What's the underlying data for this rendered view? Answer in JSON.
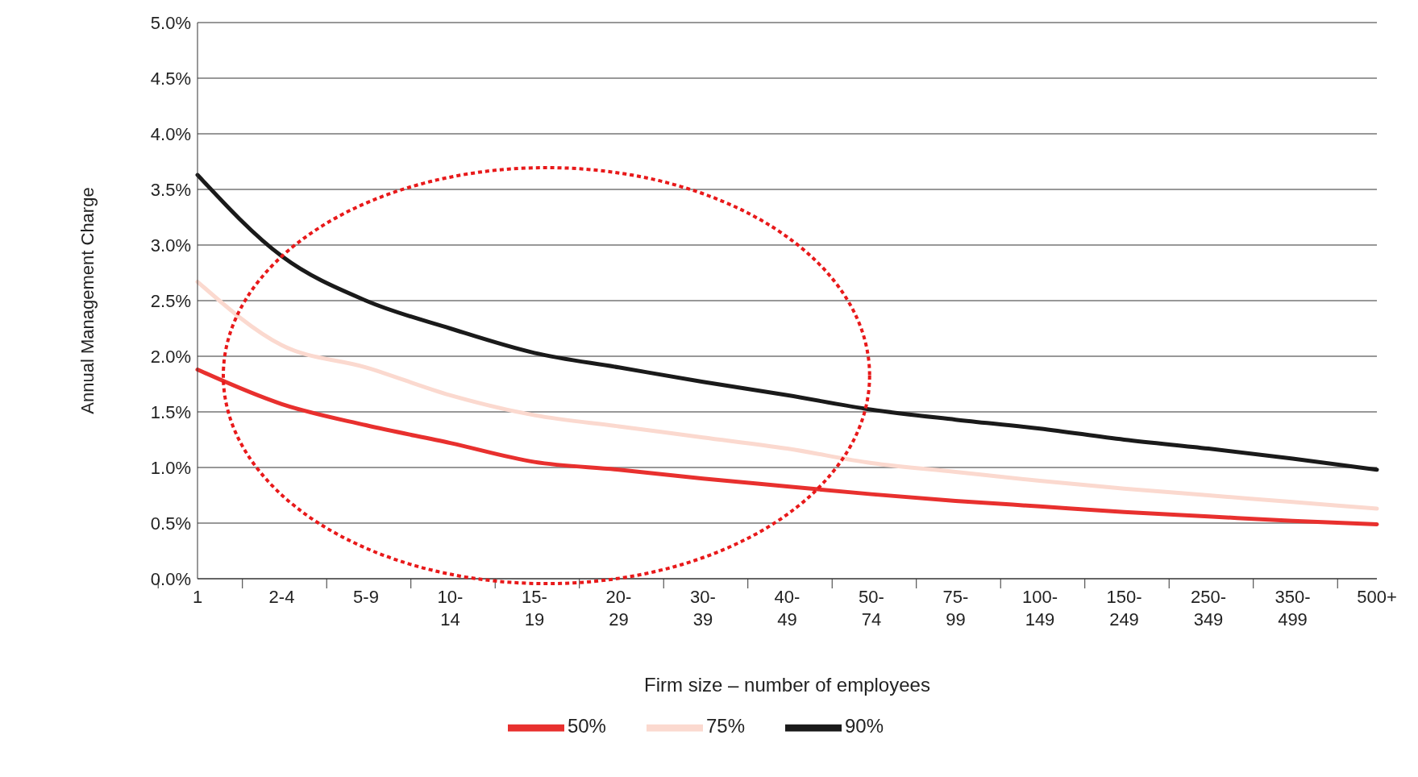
{
  "chart_data": {
    "type": "line",
    "xlabel": "Firm size – number of employees",
    "ylabel": "Annual Management Charge",
    "categories": [
      "1",
      "2-4",
      "5-9",
      "10-\n14",
      "15-\n19",
      "20-\n29",
      "30-\n39",
      "40-\n49",
      "50-\n74",
      "75-\n99",
      "100-\n149",
      "150-\n249",
      "250-\n349",
      "350-\n499",
      "500+"
    ],
    "series": [
      {
        "name": "50%",
        "color": "#e8302e",
        "values": [
          1.88,
          1.57,
          1.38,
          1.22,
          1.05,
          0.98,
          0.9,
          0.83,
          0.76,
          0.7,
          0.65,
          0.6,
          0.56,
          0.52,
          0.49
        ]
      },
      {
        "name": "75%",
        "color": "#fbd9cf",
        "values": [
          2.67,
          2.1,
          1.9,
          1.65,
          1.47,
          1.37,
          1.27,
          1.17,
          1.04,
          0.96,
          0.88,
          0.81,
          0.75,
          0.69,
          0.63
        ]
      },
      {
        "name": "90%",
        "color": "#1a1a1a",
        "values": [
          3.63,
          2.9,
          2.5,
          2.25,
          2.03,
          1.9,
          1.77,
          1.65,
          1.52,
          1.43,
          1.35,
          1.25,
          1.17,
          1.08,
          0.98
        ]
      }
    ],
    "ylim": [
      0,
      5
    ],
    "yticks": [
      {
        "value": 0,
        "label": "0.0%"
      },
      {
        "value": 0.5,
        "label": "0.5%"
      },
      {
        "value": 1,
        "label": "1.0%"
      },
      {
        "value": 1.5,
        "label": "1.5%"
      },
      {
        "value": 2,
        "label": "2.0%"
      },
      {
        "value": 2.5,
        "label": "2.5%"
      },
      {
        "value": 3,
        "label": "3.0%"
      },
      {
        "value": 3.5,
        "label": "3.5%"
      },
      {
        "value": 4,
        "label": "4.0%"
      },
      {
        "value": 4.5,
        "label": "4.5%"
      },
      {
        "value": 5,
        "label": "5.0%"
      }
    ],
    "grid": "y",
    "legend": "bottom",
    "marker": "none",
    "line_style": "solid"
  }
}
